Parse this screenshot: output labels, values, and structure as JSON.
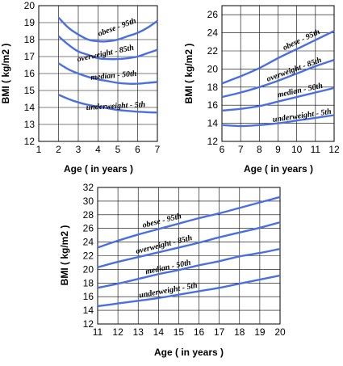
{
  "colors": {
    "curve": "#4a6fe0",
    "grid": "#000000",
    "background": "#ffffff"
  },
  "chart_data": [
    {
      "type": "line",
      "xlabel": "Age ( in years )",
      "ylabel": "BMI ( kg/m2 )",
      "xlim": [
        1,
        7
      ],
      "ylim": [
        12,
        20
      ],
      "xticks": [
        "1",
        "2",
        "3",
        "4",
        "5",
        "6",
        "7"
      ],
      "yticks": [
        "12",
        "13",
        "14",
        "15",
        "16",
        "17",
        "18",
        "19",
        "20"
      ],
      "grid": true,
      "series": [
        {
          "name": "obese - 95th",
          "x": [
            2,
            2.5,
            3,
            3.5,
            4,
            4.5,
            5,
            5.5,
            6,
            6.5,
            7
          ],
          "y": [
            19.3,
            18.7,
            18.3,
            18.0,
            17.9,
            17.9,
            18.0,
            18.2,
            18.4,
            18.7,
            19.1
          ]
        },
        {
          "name": "overweight - 85th",
          "x": [
            2,
            2.5,
            3,
            3.5,
            4,
            4.5,
            5,
            5.5,
            6,
            6.5,
            7
          ],
          "y": [
            18.2,
            17.7,
            17.3,
            17.1,
            16.9,
            16.85,
            16.85,
            16.9,
            17.0,
            17.2,
            17.4
          ]
        },
        {
          "name": "median - 50th",
          "x": [
            2,
            2.5,
            3,
            3.5,
            4,
            4.5,
            5,
            5.5,
            6,
            6.5,
            7
          ],
          "y": [
            16.6,
            16.25,
            16.0,
            15.8,
            15.65,
            15.55,
            15.45,
            15.4,
            15.4,
            15.45,
            15.5
          ]
        },
        {
          "name": "underweight - 5th",
          "x": [
            2,
            2.5,
            3,
            3.5,
            4,
            4.5,
            5,
            5.5,
            6,
            6.5,
            7
          ],
          "y": [
            14.75,
            14.5,
            14.3,
            14.15,
            14.05,
            13.95,
            13.85,
            13.8,
            13.75,
            13.72,
            13.7
          ]
        }
      ]
    },
    {
      "type": "line",
      "xlabel": "Age ( in years )",
      "ylabel": "BMI ( kg/m2 )",
      "xlim": [
        6,
        12
      ],
      "ylim": [
        12,
        27
      ],
      "xticks": [
        "6",
        "7",
        "8",
        "9",
        "10",
        "11",
        "12"
      ],
      "yticks": [
        "12",
        "14",
        "16",
        "18",
        "20",
        "22",
        "24",
        "26"
      ],
      "grid": true,
      "series": [
        {
          "name": "obese - 95th",
          "x": [
            6,
            7,
            8,
            9,
            10,
            11,
            12
          ],
          "y": [
            18.4,
            19.2,
            20.1,
            21.2,
            22.2,
            23.2,
            24.2
          ]
        },
        {
          "name": "overweight - 85th",
          "x": [
            6,
            7,
            8,
            9,
            10,
            11,
            12
          ],
          "y": [
            16.9,
            17.4,
            18.0,
            18.7,
            19.5,
            20.3,
            21.0
          ]
        },
        {
          "name": "median - 50th",
          "x": [
            6,
            7,
            8,
            9,
            10,
            11,
            12
          ],
          "y": [
            15.4,
            15.6,
            15.9,
            16.4,
            16.9,
            17.4,
            17.9
          ]
        },
        {
          "name": "underweight - 5th",
          "x": [
            6,
            7,
            8,
            9,
            10,
            11,
            12
          ],
          "y": [
            13.8,
            13.7,
            13.8,
            14.0,
            14.3,
            14.6,
            14.9
          ]
        }
      ]
    },
    {
      "type": "line",
      "xlabel": "Age ( in years )",
      "ylabel": "BMI ( kg/m2 )",
      "xlim": [
        11,
        20
      ],
      "ylim": [
        12,
        32
      ],
      "xticks": [
        "11",
        "12",
        "13",
        "14",
        "15",
        "16",
        "17",
        "18",
        "19",
        "20"
      ],
      "yticks": [
        "12",
        "14",
        "16",
        "18",
        "20",
        "22",
        "24",
        "26",
        "28",
        "30",
        "32"
      ],
      "grid": true,
      "series": [
        {
          "name": "obese - 95th",
          "x": [
            11,
            12,
            13,
            14,
            15,
            16,
            17,
            18,
            19,
            20
          ],
          "y": [
            23.2,
            24.2,
            25.1,
            25.9,
            26.7,
            27.5,
            28.2,
            29.0,
            29.8,
            30.6
          ]
        },
        {
          "name": "overweight - 85th",
          "x": [
            11,
            12,
            13,
            14,
            15,
            16,
            17,
            18,
            19,
            20
          ],
          "y": [
            20.3,
            21.1,
            21.8,
            22.5,
            23.2,
            23.9,
            24.7,
            25.4,
            26.1,
            26.9
          ]
        },
        {
          "name": "median - 50th",
          "x": [
            11,
            12,
            13,
            14,
            15,
            16,
            17,
            18,
            19,
            20
          ],
          "y": [
            17.3,
            17.9,
            18.6,
            19.3,
            19.9,
            20.6,
            21.2,
            21.9,
            22.4,
            23.0
          ]
        },
        {
          "name": "underweight - 5th",
          "x": [
            11,
            12,
            13,
            14,
            15,
            16,
            17,
            18,
            19,
            20
          ],
          "y": [
            14.6,
            15.0,
            15.4,
            15.8,
            16.3,
            16.8,
            17.3,
            17.9,
            18.5,
            19.1
          ]
        }
      ]
    }
  ]
}
